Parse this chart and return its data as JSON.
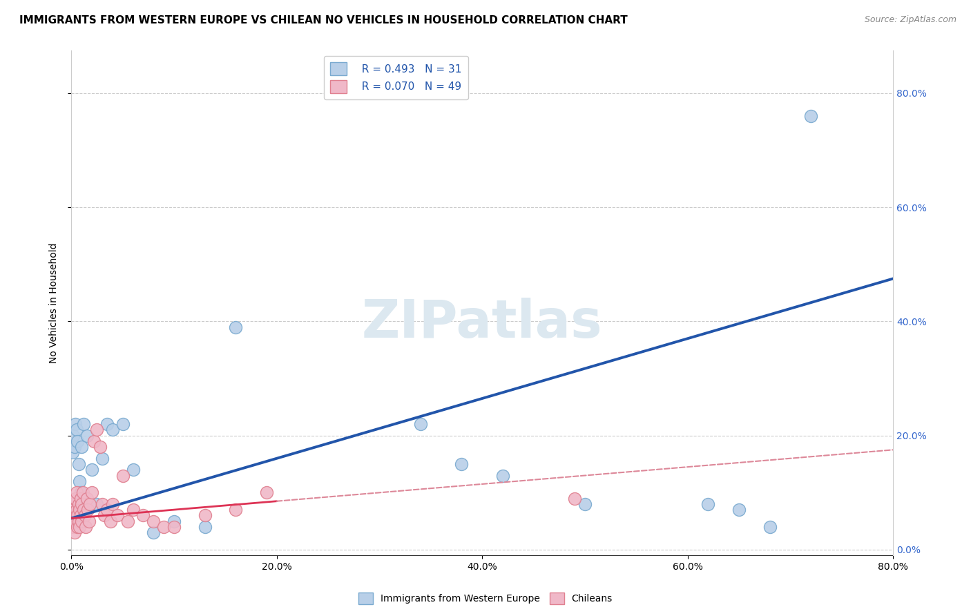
{
  "title": "IMMIGRANTS FROM WESTERN EUROPE VS CHILEAN NO VEHICLES IN HOUSEHOLD CORRELATION CHART",
  "source": "Source: ZipAtlas.com",
  "ylabel": "No Vehicles in Household",
  "r_blue": 0.493,
  "n_blue": 31,
  "r_pink": 0.07,
  "n_pink": 49,
  "blue_x": [
    0.001,
    0.002,
    0.003,
    0.004,
    0.005,
    0.006,
    0.007,
    0.008,
    0.009,
    0.01,
    0.012,
    0.015,
    0.02,
    0.025,
    0.03,
    0.035,
    0.04,
    0.05,
    0.06,
    0.08,
    0.1,
    0.13,
    0.16,
    0.34,
    0.38,
    0.42,
    0.5,
    0.62,
    0.65,
    0.68,
    0.72
  ],
  "blue_y": [
    0.17,
    0.2,
    0.18,
    0.22,
    0.21,
    0.19,
    0.15,
    0.12,
    0.1,
    0.18,
    0.22,
    0.2,
    0.14,
    0.08,
    0.16,
    0.22,
    0.21,
    0.22,
    0.14,
    0.03,
    0.05,
    0.04,
    0.39,
    0.22,
    0.15,
    0.13,
    0.08,
    0.08,
    0.07,
    0.04,
    0.76
  ],
  "pink_x": [
    0.001,
    0.001,
    0.002,
    0.002,
    0.003,
    0.003,
    0.004,
    0.004,
    0.005,
    0.005,
    0.006,
    0.006,
    0.007,
    0.007,
    0.008,
    0.008,
    0.009,
    0.009,
    0.01,
    0.01,
    0.011,
    0.012,
    0.013,
    0.014,
    0.015,
    0.016,
    0.017,
    0.018,
    0.02,
    0.022,
    0.025,
    0.028,
    0.03,
    0.032,
    0.035,
    0.038,
    0.04,
    0.045,
    0.05,
    0.055,
    0.06,
    0.07,
    0.08,
    0.09,
    0.1,
    0.13,
    0.16,
    0.19,
    0.49
  ],
  "pink_y": [
    0.08,
    0.05,
    0.07,
    0.04,
    0.06,
    0.03,
    0.09,
    0.05,
    0.1,
    0.07,
    0.06,
    0.04,
    0.08,
    0.05,
    0.07,
    0.04,
    0.09,
    0.06,
    0.08,
    0.05,
    0.1,
    0.07,
    0.06,
    0.04,
    0.09,
    0.07,
    0.05,
    0.08,
    0.1,
    0.19,
    0.21,
    0.18,
    0.08,
    0.06,
    0.07,
    0.05,
    0.08,
    0.06,
    0.13,
    0.05,
    0.07,
    0.06,
    0.05,
    0.04,
    0.04,
    0.06,
    0.07,
    0.1,
    0.09
  ],
  "xlim": [
    0.0,
    0.8
  ],
  "ylim": [
    -0.01,
    0.875
  ],
  "xticks": [
    0.0,
    0.2,
    0.4,
    0.6,
    0.8
  ],
  "yticks": [
    0.0,
    0.2,
    0.4,
    0.6,
    0.8
  ],
  "grid_color": "#cccccc",
  "blue_scatter_face": "#b8cfe8",
  "blue_scatter_edge": "#7aaad0",
  "pink_scatter_face": "#f0b8c8",
  "pink_scatter_edge": "#e08090",
  "trend_blue_color": "#2255aa",
  "trend_pink_solid_color": "#dd3355",
  "trend_pink_dash_color": "#dd8899",
  "watermark": "ZIPatlas",
  "watermark_color": "#dce8f0",
  "title_fontsize": 11,
  "legend_fontsize": 11,
  "tick_fontsize": 10,
  "marker_size": 13,
  "blue_trend_start_y": 0.055,
  "blue_trend_end_y": 0.475,
  "pink_trend_start_y": 0.055,
  "pink_trend_solid_end_x": 0.2,
  "pink_trend_end_y": 0.175
}
